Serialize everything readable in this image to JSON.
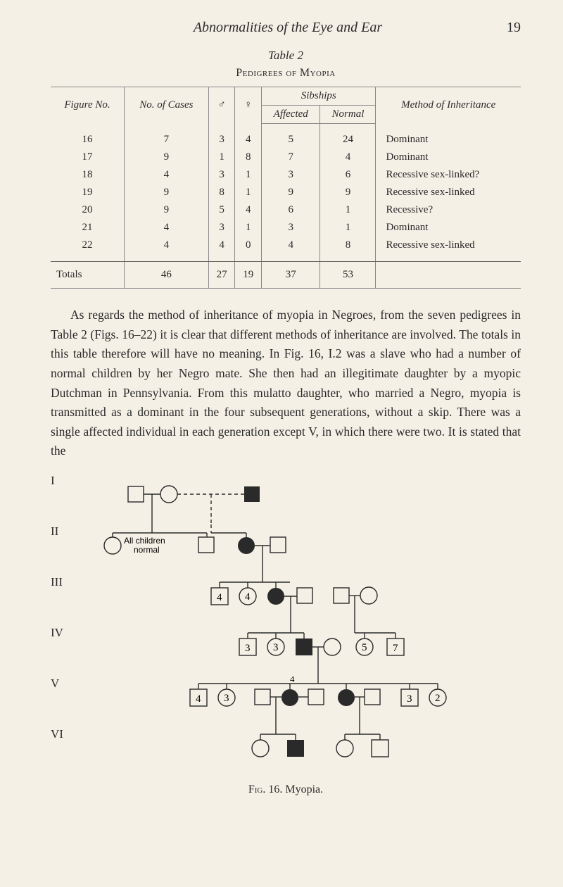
{
  "header": {
    "running_title": "Abnormalities of the Eye and Ear",
    "page_number": "19"
  },
  "table": {
    "caption": "Table 2",
    "title": "Pedigrees of Myopia",
    "columns": {
      "figure_no": "Figure No.",
      "no_cases": "No. of Cases",
      "male": "♂",
      "female": "♀",
      "sibships": "Sibships",
      "affected": "Affected",
      "normal": "Normal",
      "method": "Method of Inheritance"
    },
    "rows": [
      {
        "fig": "16",
        "cases": "7",
        "m": "3",
        "f": "4",
        "aff": "5",
        "norm": "24",
        "method": "Dominant"
      },
      {
        "fig": "17",
        "cases": "9",
        "m": "1",
        "f": "8",
        "aff": "7",
        "norm": "4",
        "method": "Dominant"
      },
      {
        "fig": "18",
        "cases": "4",
        "m": "3",
        "f": "1",
        "aff": "3",
        "norm": "6",
        "method": "Recessive sex-linked?"
      },
      {
        "fig": "19",
        "cases": "9",
        "m": "8",
        "f": "1",
        "aff": "9",
        "norm": "9",
        "method": "Recessive sex-linked"
      },
      {
        "fig": "20",
        "cases": "9",
        "m": "5",
        "f": "4",
        "aff": "6",
        "norm": "1",
        "method": "Recessive?"
      },
      {
        "fig": "21",
        "cases": "4",
        "m": "3",
        "f": "1",
        "aff": "3",
        "norm": "1",
        "method": "Dominant"
      },
      {
        "fig": "22",
        "cases": "4",
        "m": "4",
        "f": "0",
        "aff": "4",
        "norm": "8",
        "method": "Recessive sex-linked"
      }
    ],
    "totals": {
      "label": "Totals",
      "cases": "46",
      "m": "27",
      "f": "19",
      "aff": "37",
      "norm": "53"
    }
  },
  "paragraph": "As regards the method of inheritance of myopia in Negroes, from the seven pedigrees in Table 2 (Figs. 16–22) it is clear that different methods of inheritance are involved. The totals in this table therefore will have no meaning. In Fig. 16, I.2 was a slave who had a number of normal children by her Negro mate. She then had an illegitimate daughter by a myopic Dutchman in Pennsylvania. From this mulatto daughter, who married a Negro, myopia is transmitted as a dominant in the four subsequent generations, without a skip. There was a single affected individual in each generation except V, in which there were two. It is stated that the",
  "pedigree": {
    "generations": [
      "I",
      "II",
      "III",
      "IV",
      "V",
      "VI"
    ],
    "annot_children": "All   children normal",
    "labels": {
      "g3_1": "4",
      "g3_2": "4",
      "g4_1": "3",
      "g4_2": "3",
      "g4_3": "5",
      "g4_4": "7",
      "g5_1": "4",
      "g5_2": "3",
      "g5_top": "4",
      "g5_3": "3",
      "g5_4": "2"
    },
    "colors": {
      "stroke": "#2a2a2a",
      "fill_affected": "#2a2a2a",
      "fill_clear": "none",
      "bg": "#f5f0e6"
    }
  },
  "figure_caption": {
    "prefix": "Fig.",
    "num": "16.",
    "title": "Myopia."
  }
}
